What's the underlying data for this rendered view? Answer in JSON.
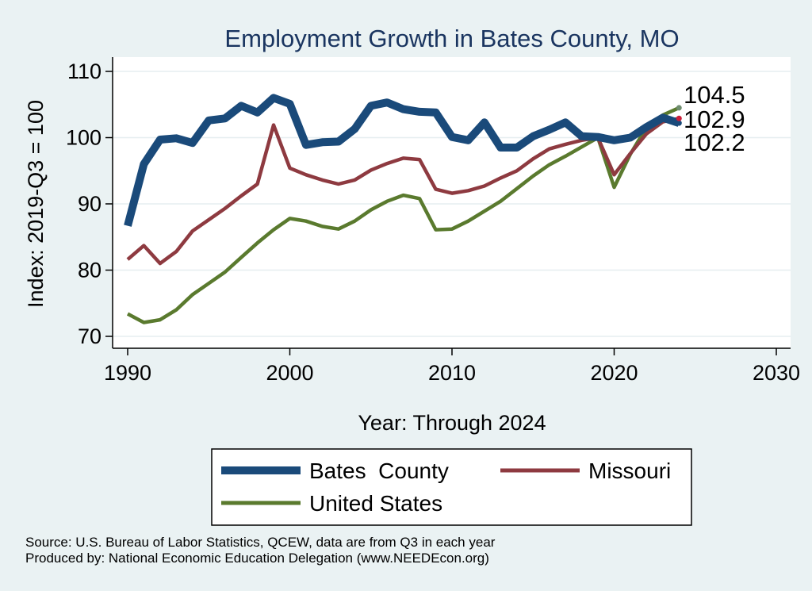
{
  "chart_data": {
    "type": "line",
    "title": "Employment Growth in Bates County, MO",
    "xlabel": "Year: Through 2024",
    "ylabel": "Index: 2019-Q3 = 100",
    "xlim": [
      1990,
      2030
    ],
    "ylim": [
      70,
      110
    ],
    "xticks": [
      1990,
      2000,
      2010,
      2020,
      2030
    ],
    "yticks": [
      70,
      80,
      90,
      100,
      110
    ],
    "grid": true,
    "x": [
      1990,
      1991,
      1992,
      1993,
      1994,
      1995,
      1996,
      1997,
      1998,
      1999,
      2000,
      2001,
      2002,
      2003,
      2004,
      2005,
      2006,
      2007,
      2008,
      2009,
      2010,
      2011,
      2012,
      2013,
      2014,
      2015,
      2016,
      2017,
      2018,
      2019,
      2020,
      2021,
      2022,
      2023,
      2024
    ],
    "series": [
      {
        "name": "Bates  County",
        "color": "#1a4a7a",
        "values": [
          86.7,
          96.0,
          99.7,
          99.9,
          99.2,
          102.6,
          102.9,
          104.8,
          103.8,
          106.0,
          105.1,
          98.9,
          99.3,
          99.4,
          101.3,
          104.8,
          105.3,
          104.3,
          103.9,
          103.8,
          100.1,
          99.6,
          102.3,
          98.5,
          98.5,
          100.2,
          101.2,
          102.3,
          100.2,
          100.1,
          99.6,
          100.0,
          101.6,
          103.0,
          102.2
        ],
        "end_label": "102.2"
      },
      {
        "name": "Missouri",
        "color": "#8e3a40",
        "values": [
          81.6,
          83.7,
          81.0,
          82.8,
          85.9,
          87.6,
          89.3,
          91.2,
          93.0,
          101.9,
          95.4,
          94.4,
          93.6,
          93.0,
          93.6,
          95.1,
          96.1,
          96.9,
          96.7,
          92.2,
          91.6,
          92.0,
          92.7,
          93.9,
          95.0,
          96.8,
          98.3,
          99.0,
          99.6,
          100.0,
          94.4,
          97.6,
          100.6,
          102.4,
          102.9
        ],
        "end_label": "102.9"
      },
      {
        "name": "United States",
        "color": "#5a7a2e",
        "values": [
          73.4,
          72.1,
          72.5,
          74.0,
          76.3,
          78.0,
          79.7,
          81.9,
          84.1,
          86.1,
          87.8,
          87.4,
          86.6,
          86.2,
          87.4,
          89.1,
          90.4,
          91.3,
          90.8,
          86.1,
          86.2,
          87.4,
          88.9,
          90.4,
          92.3,
          94.2,
          95.9,
          97.2,
          98.6,
          100.0,
          92.5,
          97.5,
          101.6,
          103.4,
          104.5
        ],
        "end_label": "104.5"
      }
    ],
    "legend": {
      "placement": "bottom",
      "entries": [
        "Bates  County",
        "Missouri",
        "United States"
      ]
    }
  },
  "source": {
    "line1": "Source: U.S. Bureau of Labor Statistics, QCEW, data are from Q3 in each year",
    "line2": "Produced by: National Economic Education Delegation (www.NEEDEcon.org)"
  }
}
